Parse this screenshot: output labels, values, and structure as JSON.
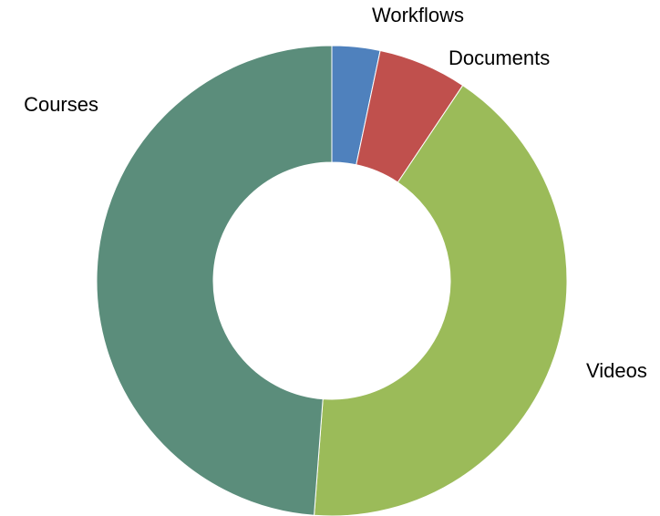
{
  "chart_data": {
    "type": "pie",
    "categories": [
      "Workflows",
      "Documents",
      "Videos",
      "Courses"
    ],
    "values": [
      3.3,
      6.1,
      41.8,
      48.8
    ],
    "colors": [
      "#4f81bd",
      "#c0504d",
      "#9bbb59",
      "#5b8d7b"
    ]
  }
}
